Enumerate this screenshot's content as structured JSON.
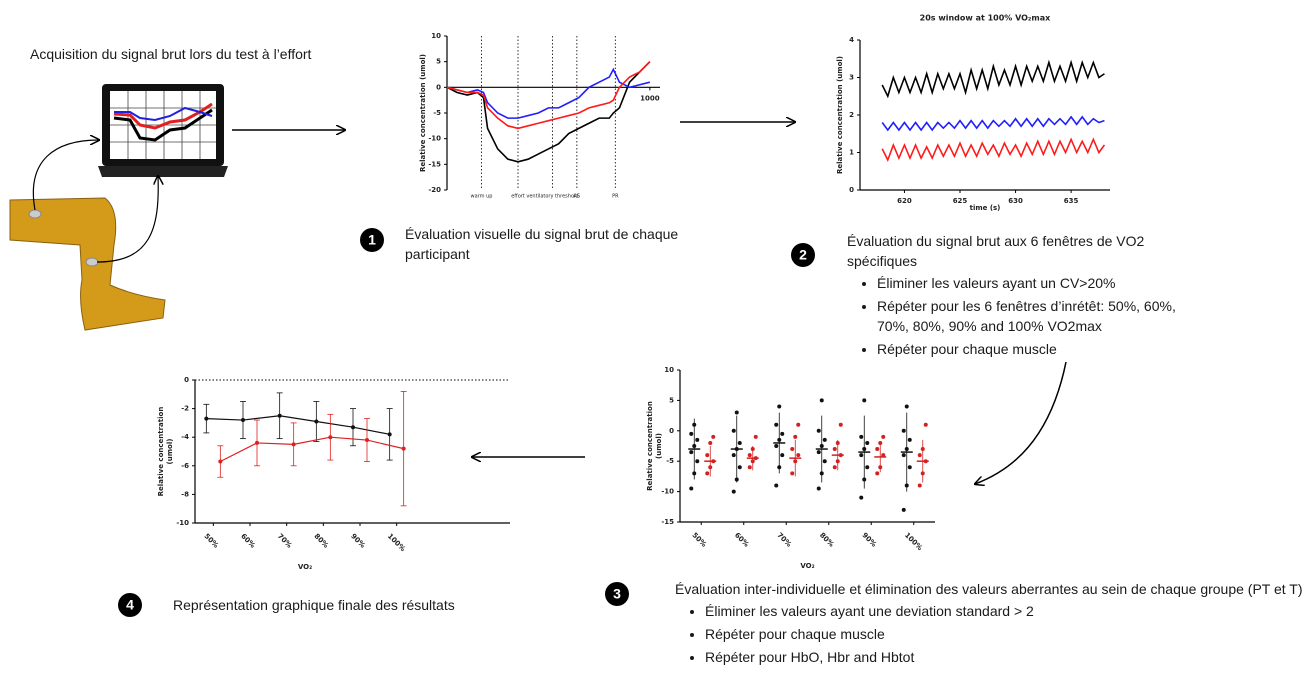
{
  "header": {
    "text": "Acquisition du signal brut lors du test à l’effort"
  },
  "steps": [
    {
      "number": 1,
      "text": "Évaluation visuelle du signal brut de chaque participant",
      "bullets": []
    },
    {
      "number": 2,
      "text": "Évaluation du signal brut aux 6 fenêtres de VO2 spécifiques",
      "bullets": [
        "Éliminer les valeurs ayant un CV>20%",
        "Répéter pour les 6 fenêtres d’inrétêt: 50%, 60%, 70%, 80%, 90% and 100% VO2max",
        "Répéter pour chaque muscle"
      ]
    },
    {
      "number": 3,
      "text": "Évaluation inter-individuelle et élimination des valeurs aberrantes au sein de chaque groupe (PT et T)",
      "bullets": [
        "Éliminer les valeurs ayant une deviation standard > 2",
        "Répéter pour chaque muscle",
        "Répéter pour HbO, Hbr and Hbtot"
      ]
    },
    {
      "number": 4,
      "text": "Représentation graphique finale des résultats",
      "bullets": []
    }
  ],
  "chart_data": [
    {
      "type": "line",
      "ylabel": "Relative concentration (umol)",
      "x_axis_at_zero": true,
      "xlim": [
        0,
        1050
      ],
      "xticks": [
        1000
      ],
      "ylim": [
        -20,
        10
      ],
      "yticks": [
        10,
        5,
        0,
        -5,
        -10,
        -15,
        -20
      ],
      "events": [
        {
          "x": 170,
          "label": "warm up"
        },
        {
          "x": 350,
          "label": "effort"
        },
        {
          "x": 520,
          "label": "ventilatory threshold"
        },
        {
          "x": 640,
          "label": "AS"
        },
        {
          "x": 830,
          "label": "PR"
        }
      ],
      "x": [
        0,
        50,
        100,
        150,
        180,
        200,
        250,
        300,
        350,
        400,
        450,
        500,
        550,
        600,
        650,
        700,
        750,
        800,
        820,
        850,
        900,
        950,
        1000
      ],
      "series": [
        {
          "color": "#000000",
          "values": [
            0,
            -1,
            -1.5,
            -1,
            -2,
            -8,
            -12,
            -14,
            -14.5,
            -14,
            -13,
            -12,
            -11,
            -9,
            -8,
            -7,
            -6,
            -6,
            -5,
            -4,
            1,
            3,
            5
          ]
        },
        {
          "color": "#1f1fff",
          "values": [
            0,
            -0.5,
            -1,
            -0.5,
            -1,
            -3,
            -5,
            -6,
            -6,
            -5.5,
            -5,
            -4,
            -4,
            -3,
            -2,
            0,
            1,
            2,
            3.5,
            1,
            0,
            0.5,
            1
          ]
        },
        {
          "color": "#ff1a1a",
          "values": [
            0,
            -0.5,
            -1,
            -1,
            -1.5,
            -4,
            -6,
            -7.5,
            -8,
            -7.5,
            -7,
            -6.5,
            -6,
            -5.5,
            -5,
            -4,
            -3.5,
            -3,
            -2.5,
            0,
            2,
            3,
            5
          ]
        }
      ]
    },
    {
      "type": "line",
      "title": "20s window at 100% VO₂max",
      "xlabel": "time (s)",
      "ylabel": "Relative concentration (umol)",
      "xlim": [
        616,
        638.5
      ],
      "xticks": [
        620,
        625,
        630,
        635
      ],
      "ylim": [
        0,
        4
      ],
      "yticks": [
        0,
        1,
        2,
        3,
        4
      ],
      "x": [
        618,
        618.5,
        619,
        619.5,
        620,
        620.5,
        621,
        621.5,
        622,
        622.5,
        623,
        623.5,
        624,
        624.5,
        625,
        625.5,
        626,
        626.5,
        627,
        627.5,
        628,
        628.5,
        629,
        629.5,
        630,
        630.5,
        631,
        631.5,
        632,
        632.5,
        633,
        633.5,
        634,
        634.5,
        635,
        635.5,
        636,
        636.5,
        637,
        637.5,
        638
      ],
      "series": [
        {
          "color": "#000000",
          "values": [
            2.8,
            2.5,
            3.0,
            2.6,
            3.0,
            2.6,
            3.0,
            2.6,
            3.1,
            2.6,
            3.1,
            2.7,
            3.1,
            2.7,
            3.1,
            2.6,
            3.2,
            2.7,
            3.2,
            2.7,
            3.3,
            2.8,
            3.2,
            2.8,
            3.3,
            2.8,
            3.3,
            2.9,
            3.3,
            2.9,
            3.4,
            2.9,
            3.3,
            2.9,
            3.4,
            2.9,
            3.4,
            3.0,
            3.4,
            3.0,
            3.1
          ]
        },
        {
          "color": "#1f1fff",
          "values": [
            1.8,
            1.6,
            1.8,
            1.6,
            1.8,
            1.6,
            1.8,
            1.6,
            1.8,
            1.6,
            1.8,
            1.65,
            1.8,
            1.65,
            1.85,
            1.65,
            1.85,
            1.65,
            1.85,
            1.65,
            1.85,
            1.7,
            1.85,
            1.7,
            1.9,
            1.7,
            1.9,
            1.7,
            1.9,
            1.7,
            1.9,
            1.75,
            1.9,
            1.75,
            1.95,
            1.75,
            1.95,
            1.75,
            1.9,
            1.8,
            1.85
          ]
        },
        {
          "color": "#ff1a1a",
          "values": [
            1.1,
            0.8,
            1.2,
            0.85,
            1.2,
            0.85,
            1.2,
            0.85,
            1.15,
            0.85,
            1.2,
            0.9,
            1.2,
            0.9,
            1.25,
            0.9,
            1.2,
            0.9,
            1.25,
            0.95,
            1.2,
            0.9,
            1.25,
            0.95,
            1.2,
            0.9,
            1.25,
            0.95,
            1.3,
            0.95,
            1.3,
            0.95,
            1.3,
            1.0,
            1.35,
            1.0,
            1.3,
            1.0,
            1.35,
            1.0,
            1.2
          ]
        }
      ]
    },
    {
      "type": "strip",
      "xlabel": "VO₂",
      "ylabel": [
        "Relative concentration",
        "(umol)"
      ],
      "categories": [
        "50%",
        "60%",
        "70%",
        "80%",
        "90%",
        "100%"
      ],
      "ylim": [
        -15,
        10
      ],
      "yticks": [
        10,
        5,
        0,
        -5,
        -10,
        -15
      ],
      "series": [
        {
          "color": "#111111",
          "values": [
            [
              -9.5,
              -7,
              -5,
              -3.5,
              -2.5,
              -1.5,
              -0.5,
              1
            ],
            [
              -10,
              -8,
              -6,
              -4,
              -3,
              -2,
              0,
              3
            ],
            [
              -9,
              -6,
              -4,
              -2.5,
              -1.5,
              -0.5,
              1,
              4
            ],
            [
              -9.5,
              -7,
              -5,
              -3.5,
              -2.5,
              -1.5,
              0,
              5
            ],
            [
              -11,
              -8,
              -6,
              -4,
              -3,
              -2,
              -1,
              5
            ],
            [
              -13,
              -9,
              -6,
              -4,
              -3,
              -1.5,
              0,
              4
            ]
          ],
          "means": [
            -3,
            -3,
            -2,
            -3,
            -3.5,
            -3.5
          ],
          "errors": [
            5,
            5.5,
            5,
            5.5,
            6,
            6.5
          ]
        },
        {
          "color": "#d42020",
          "values": [
            [
              -7,
              -6,
              -5,
              -4,
              -2,
              -1
            ],
            [
              -6,
              -5,
              -4.5,
              -4,
              -3,
              -1
            ],
            [
              -7,
              -5,
              -4,
              -3,
              -1,
              1
            ],
            [
              -6,
              -5,
              -4,
              -3,
              -2,
              1
            ],
            [
              -7,
              -6,
              -4,
              -3,
              -2,
              -1
            ],
            [
              -9,
              -7,
              -5,
              -4,
              -3,
              1
            ]
          ],
          "means": [
            -5,
            -4.5,
            -4.5,
            -4,
            -4.3,
            -5
          ],
          "errors": [
            2.5,
            2,
            3,
            2.5,
            2.5,
            3.5
          ]
        }
      ]
    },
    {
      "type": "line",
      "xlabel": "VO₂",
      "ylabel": [
        "Relative concentration",
        "(umol)"
      ],
      "hline": 0,
      "categories": [
        "50%",
        "60%",
        "70%",
        "80%",
        "90%",
        "100%"
      ],
      "ylim": [
        -10,
        0
      ],
      "yticks": [
        0,
        -2,
        -4,
        -6,
        -8,
        -10
      ],
      "series": [
        {
          "color": "#111111",
          "values": [
            -2.7,
            -2.8,
            -2.5,
            -2.9,
            -3.3,
            -3.8
          ],
          "errors": [
            1,
            1.3,
            1.6,
            1.4,
            1.3,
            1.8
          ]
        },
        {
          "color": "#e02020",
          "values": [
            -5.7,
            -4.4,
            -4.5,
            -4.0,
            -4.2,
            -4.8
          ],
          "errors": [
            1.1,
            1.6,
            1.5,
            1.6,
            1.5,
            4.0
          ]
        }
      ]
    }
  ]
}
